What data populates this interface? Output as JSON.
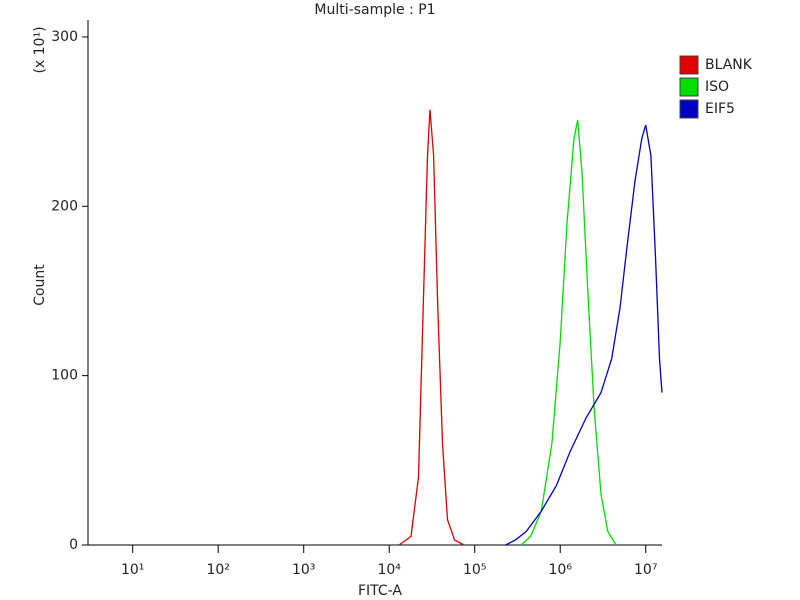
{
  "chart_data": {
    "type": "line",
    "title": "Multi-sample : P1",
    "x_label": "FITC-A",
    "y_label": "Count",
    "y_multiplier": "(x 10¹)",
    "xscale": "log",
    "xlim": [
      3,
      15500000
    ],
    "ylim": [
      0,
      310
    ],
    "xticks": [
      {
        "value": 10,
        "label": "10¹"
      },
      {
        "value": 100,
        "label": "10²"
      },
      {
        "value": 1000,
        "label": "10³"
      },
      {
        "value": 10000,
        "label": "10⁴"
      },
      {
        "value": 100000,
        "label": "10⁵"
      },
      {
        "value": 1000000,
        "label": "10⁶"
      },
      {
        "value": 10000000,
        "label": "10⁷"
      }
    ],
    "yticks": [
      0,
      100,
      200,
      300
    ],
    "series": [
      {
        "name": "BLANK",
        "color": "#e00000",
        "x": [
          13000,
          18000,
          22000,
          25000,
          28000,
          30000,
          33000,
          37000,
          42000,
          48000,
          58000,
          75000
        ],
        "values": [
          0,
          5,
          40,
          140,
          230,
          257,
          230,
          140,
          60,
          15,
          3,
          0
        ]
      },
      {
        "name": "ISO",
        "color": "#00dd00",
        "x": [
          350000,
          450000,
          600000,
          800000,
          1000000,
          1200000,
          1450000,
          1600000,
          1800000,
          2100000,
          2500000,
          3000000,
          3600000,
          4500000
        ],
        "values": [
          0,
          5,
          20,
          60,
          120,
          190,
          240,
          251,
          220,
          150,
          80,
          30,
          8,
          0
        ]
      },
      {
        "name": "EIF5",
        "color": "#0000c0",
        "x": [
          230000,
          300000,
          400000,
          600000,
          900000,
          1300000,
          2000000,
          3000000,
          4000000,
          5000000,
          6000000,
          7500000,
          9000000,
          10000000,
          11500000,
          13000000,
          14500000,
          15500000
        ],
        "values": [
          0,
          3,
          8,
          20,
          35,
          55,
          75,
          90,
          110,
          140,
          175,
          215,
          240,
          248,
          230,
          170,
          110,
          90
        ]
      }
    ],
    "legend": "right"
  }
}
